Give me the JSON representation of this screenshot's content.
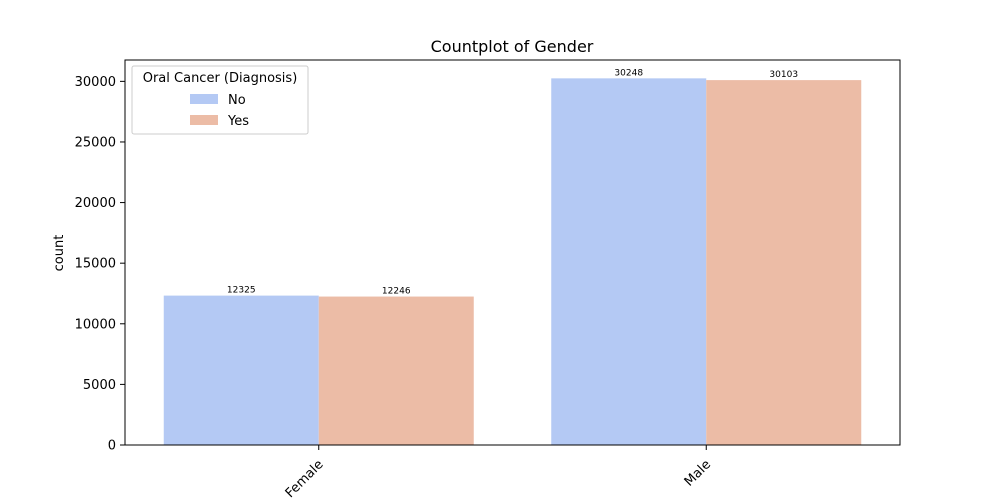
{
  "chart_data": {
    "type": "bar",
    "title": "Countplot of Gender",
    "xlabel": "",
    "ylabel": "count",
    "categories": [
      "Female",
      "Male"
    ],
    "series": [
      {
        "name": "No",
        "values": [
          12325,
          30248
        ],
        "color": "#b4c9f4"
      },
      {
        "name": "Yes",
        "values": [
          12246,
          30103
        ],
        "color": "#ecbca6"
      }
    ],
    "ylim": [
      0,
      31762
    ],
    "yticks": [
      0,
      5000,
      10000,
      15000,
      20000,
      25000,
      30000
    ],
    "grid": false,
    "legend": {
      "title": "Oral Cancer (Diagnosis)",
      "placement": "top-left"
    }
  }
}
